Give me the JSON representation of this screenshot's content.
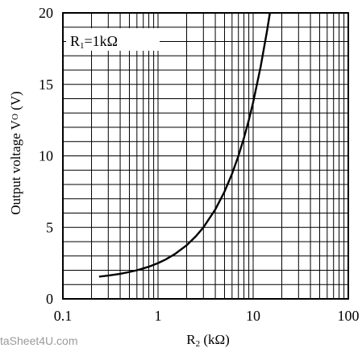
{
  "chart_data": {
    "type": "line",
    "xscale": "log",
    "xlim": [
      0.1,
      100
    ],
    "ylim": [
      0,
      20
    ],
    "x_ticks": [
      "0.1",
      "1",
      "10",
      "100"
    ],
    "y_ticks": [
      "0",
      "5",
      "10",
      "15",
      "20"
    ],
    "grid": true,
    "ylabel": {
      "main": "Output voltage V",
      "sub": "O",
      "unit": " (V)"
    },
    "xlabel": {
      "main": "R",
      "sub": "2",
      "unit": " (kΩ)"
    },
    "annotation": {
      "main": "R",
      "sub": "1",
      "rest": "=1kΩ"
    },
    "series": [
      {
        "x": [
          0.24,
          0.3,
          0.4,
          0.5,
          0.6,
          0.7,
          0.8,
          1.0,
          1.2,
          1.5,
          2.0,
          2.5,
          3.0,
          4.0,
          5.0,
          6.0,
          7.0,
          8.0,
          9.0,
          10.0,
          12.0,
          14.0,
          15.0
        ],
        "y": [
          1.55,
          1.63,
          1.75,
          1.88,
          2.0,
          2.13,
          2.25,
          2.5,
          2.75,
          3.13,
          3.75,
          4.38,
          5.0,
          6.25,
          7.5,
          8.75,
          10.0,
          11.25,
          12.5,
          13.75,
          16.25,
          18.75,
          20.0
        ]
      }
    ]
  },
  "watermark": "taSheet4U.com"
}
